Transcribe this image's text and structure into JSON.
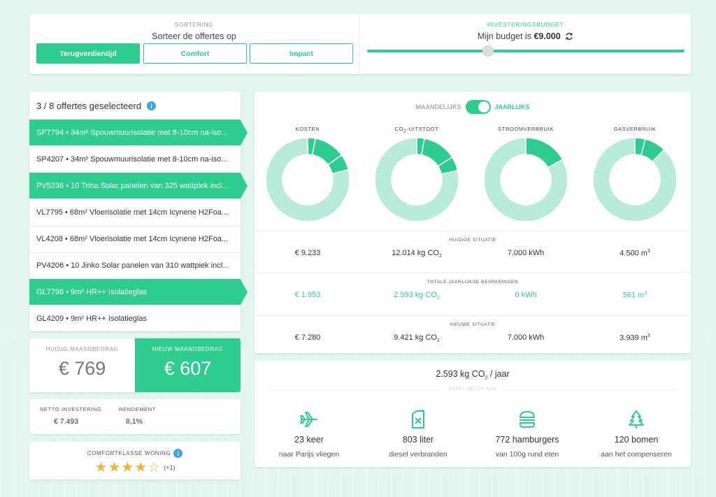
{
  "sorting": {
    "title": "SORTERING",
    "subtitle": "Sorteer de offertes op",
    "buttons": [
      "Terugverdientijd",
      "Comfort",
      "Impact"
    ],
    "active": 0
  },
  "budget": {
    "title": "INVESTERINGSBUDGET",
    "prefix": "Mijn budget is ",
    "amount": "€9.000",
    "refresh_icon": "refresh-icon",
    "slider_fraction": 0.38
  },
  "offers": {
    "header": "3 / 8 offertes geselecteerd",
    "items": [
      {
        "text": "SP7794 • 34m² Spouwmuurisolatie met 8-10cm na-iso...",
        "selected": true
      },
      {
        "text": "SP4207 • 34m² Spouwmuurisolatie met 8-10cm na-iso...",
        "selected": false
      },
      {
        "text": "PV5236 • 10 Trina Solar panelen van 325 wattpiek incl...",
        "selected": true
      },
      {
        "text": "VL7795 • 68m² Vloerisolatie met 14cm Icynene H2Foa...",
        "selected": false
      },
      {
        "text": "VL4208 • 68m² Vloerisolatie met 14cm Icynene H2Foa...",
        "selected": false
      },
      {
        "text": "PV4206 • 10 Jinko Solar panelen van 310 wattpiek incl...",
        "selected": false
      },
      {
        "text": "GL7796 • 9m² HR++ Isolatieglas",
        "selected": true
      },
      {
        "text": "GL4209 • 9m² HR++ Isolatieglas",
        "selected": false
      }
    ]
  },
  "monthly": {
    "current_label": "HUIDIG MAANDBEDRAG",
    "current_value": "€ 769",
    "new_label": "NIEUW MAANDBEDRAG",
    "new_value": "€ 607"
  },
  "investment": {
    "net_label": "NETTO INVESTERING",
    "net_value": "€ 7.493",
    "return_label": "RENDEMENT",
    "return_value": "8,1%"
  },
  "comfort": {
    "title": "COMFORTKLASSE WONING",
    "stars_filled": 4,
    "stars_total": 5,
    "plus": "(+1)"
  },
  "toggle": {
    "left": "MAANDELIJKS",
    "right": "JAARLIJKS",
    "selected": "right"
  },
  "donuts": [
    {
      "title": "KOSTEN",
      "segments": [
        0.788,
        0.03,
        0.12,
        0.062
      ]
    },
    {
      "title": "CO2-UITSTOOT",
      "segments": [
        0.785,
        0.03,
        0.13,
        0.055
      ]
    },
    {
      "title": "STROOMVERBRUIK",
      "segments": [
        0.83,
        0.17
      ]
    },
    {
      "title": "GASVERBRUIK",
      "segments": [
        0.877,
        0.04,
        0.083
      ]
    }
  ],
  "colors": {
    "accent": "#2ecc8f",
    "donut_light": "#b8ecd8",
    "donut_dark": "#2ecc8f",
    "star": "#f2b33d",
    "info": "#3aa6e5"
  },
  "sections": [
    {
      "title": "HUIDIGE SITUATIE",
      "green": false,
      "values": [
        {
          "v": "€ 9.233",
          "unit": ""
        },
        {
          "v": "12.014 kg CO",
          "unit": "sub2"
        },
        {
          "v": "7.000 kWh",
          "unit": ""
        },
        {
          "v": "4.500 m",
          "unit": "sup3"
        }
      ]
    },
    {
      "title": "TOTALE JAARLIJKSE BESPARINGEN",
      "green": true,
      "values": [
        {
          "v": "€ 1.953",
          "unit": ""
        },
        {
          "v": "2.593 kg CO",
          "unit": "sub2"
        },
        {
          "v": "0 kWh",
          "unit": ""
        },
        {
          "v": "561 m",
          "unit": "sup3"
        }
      ]
    },
    {
      "title": "NIEUWE SITUATIE",
      "green": false,
      "values": [
        {
          "v": "€ 7.280",
          "unit": ""
        },
        {
          "v": "9.421 kg CO",
          "unit": "sub2"
        },
        {
          "v": "7.000 kWh",
          "unit": ""
        },
        {
          "v": "3.939 m",
          "unit": "sup3"
        }
      ]
    }
  ],
  "co2": {
    "title_prefix": "2.593 kg CO",
    "title_suffix": " / jaar",
    "subtitle": "STAAT GELIJK AAN",
    "equivalents": [
      {
        "icon": "airplane-icon",
        "main": "23 keer",
        "sub": "naar Parijs vliegen"
      },
      {
        "icon": "jerrycan-icon",
        "main": "803 liter",
        "sub": "diesel verbranden"
      },
      {
        "icon": "hamburger-icon",
        "main": "772 hamburgers",
        "sub": "van 100g rund eten"
      },
      {
        "icon": "tree-icon",
        "main": "120 bomen",
        "sub": "aan het compenseren"
      }
    ]
  }
}
